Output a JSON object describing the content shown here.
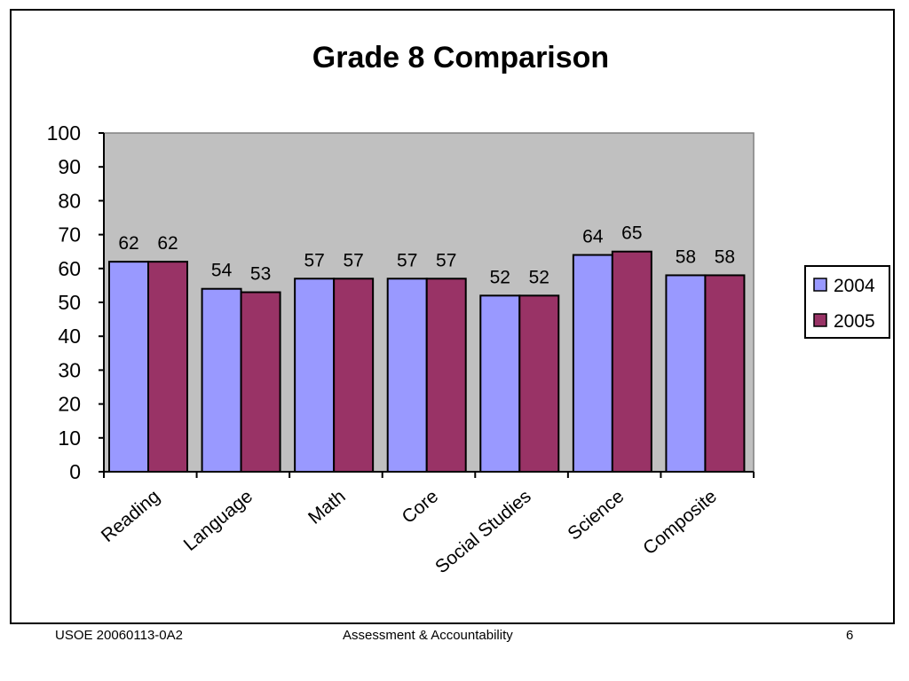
{
  "footer": {
    "left": "USOE 20060113-0A2",
    "center": "Assessment & Accountability",
    "page_number": "6"
  },
  "colors": {
    "plot_background": "#c0c0c0",
    "series_2004": "#9999ff",
    "series_2005": "#993366"
  },
  "chart_data": {
    "type": "bar",
    "title": "Grade 8 Comparison",
    "xlabel": "",
    "ylabel": "",
    "categories": [
      "Reading",
      "Language",
      "Math",
      "Core",
      "Social Studies",
      "Science",
      "Composite"
    ],
    "series": [
      {
        "name": "2004",
        "values": [
          62,
          54,
          57,
          57,
          52,
          64,
          58
        ]
      },
      {
        "name": "2005",
        "values": [
          62,
          53,
          57,
          57,
          52,
          65,
          58
        ]
      }
    ],
    "ylim": [
      0,
      100
    ],
    "yticks": [
      0,
      10,
      20,
      30,
      40,
      50,
      60,
      70,
      80,
      90,
      100
    ],
    "grid": false,
    "legend_position": "right",
    "data_labels": true
  }
}
